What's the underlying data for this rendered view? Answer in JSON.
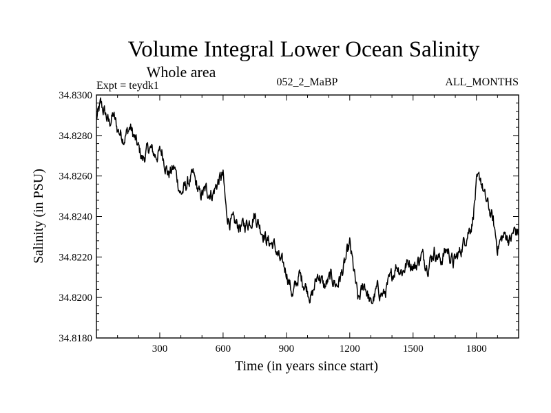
{
  "chart_data": {
    "type": "line",
    "title": "Volume Integral Lower Ocean Salinity",
    "subtitle": "Whole area",
    "expt_label": "Expt = teydk1",
    "run_label": "052_2_MaBP",
    "months_label": "ALL_MONTHS",
    "xlabel": "Time (in years since start)",
    "ylabel": "Salinity (in PSU)",
    "xlim": [
      0,
      2000
    ],
    "ylim": [
      34.818,
      34.83
    ],
    "x_ticks": [
      300,
      600,
      900,
      1200,
      1500,
      1800
    ],
    "y_ticks": [
      "34.8180",
      "34.8200",
      "34.8220",
      "34.8240",
      "34.8260",
      "34.8280",
      "34.8300"
    ],
    "grid": false,
    "series": [
      {
        "name": "Salinity",
        "color": "#000000",
        "x": [
          0,
          20,
          40,
          60,
          80,
          100,
          130,
          160,
          190,
          220,
          250,
          280,
          310,
          340,
          370,
          400,
          430,
          460,
          490,
          520,
          550,
          580,
          600,
          615,
          630,
          660,
          690,
          720,
          750,
          780,
          810,
          840,
          870,
          900,
          930,
          960,
          990,
          1020,
          1050,
          1080,
          1110,
          1140,
          1170,
          1200,
          1215,
          1240,
          1270,
          1300,
          1330,
          1360,
          1390,
          1420,
          1450,
          1480,
          1510,
          1540,
          1570,
          1600,
          1630,
          1660,
          1690,
          1720,
          1750,
          1780,
          1800,
          1820,
          1840,
          1860,
          1880,
          1900,
          1920,
          1940,
          1960,
          1980,
          2000
        ],
        "values": [
          34.8288,
          34.8295,
          34.8291,
          34.8286,
          34.829,
          34.8283,
          34.8279,
          34.8284,
          34.8276,
          34.8268,
          34.8274,
          34.827,
          34.8272,
          34.8261,
          34.8264,
          34.8251,
          34.8256,
          34.826,
          34.825,
          34.8253,
          34.8251,
          34.8258,
          34.826,
          34.8242,
          34.8238,
          34.8236,
          34.8235,
          34.8237,
          34.8241,
          34.8234,
          34.8228,
          34.8226,
          34.8218,
          34.8213,
          34.8201,
          34.8211,
          34.8206,
          34.82,
          34.8212,
          34.8205,
          34.821,
          34.8206,
          34.8214,
          34.8226,
          34.8216,
          34.8198,
          34.8207,
          34.8196,
          34.8204,
          34.8201,
          34.8208,
          34.8216,
          34.8213,
          34.8218,
          34.8215,
          34.8221,
          34.8216,
          34.8223,
          34.8218,
          34.8224,
          34.8217,
          34.8222,
          34.823,
          34.8237,
          34.8255,
          34.8259,
          34.8249,
          34.8244,
          34.8237,
          34.8225,
          34.8229,
          34.8231,
          34.8228,
          34.8233,
          34.8232
        ]
      }
    ]
  }
}
